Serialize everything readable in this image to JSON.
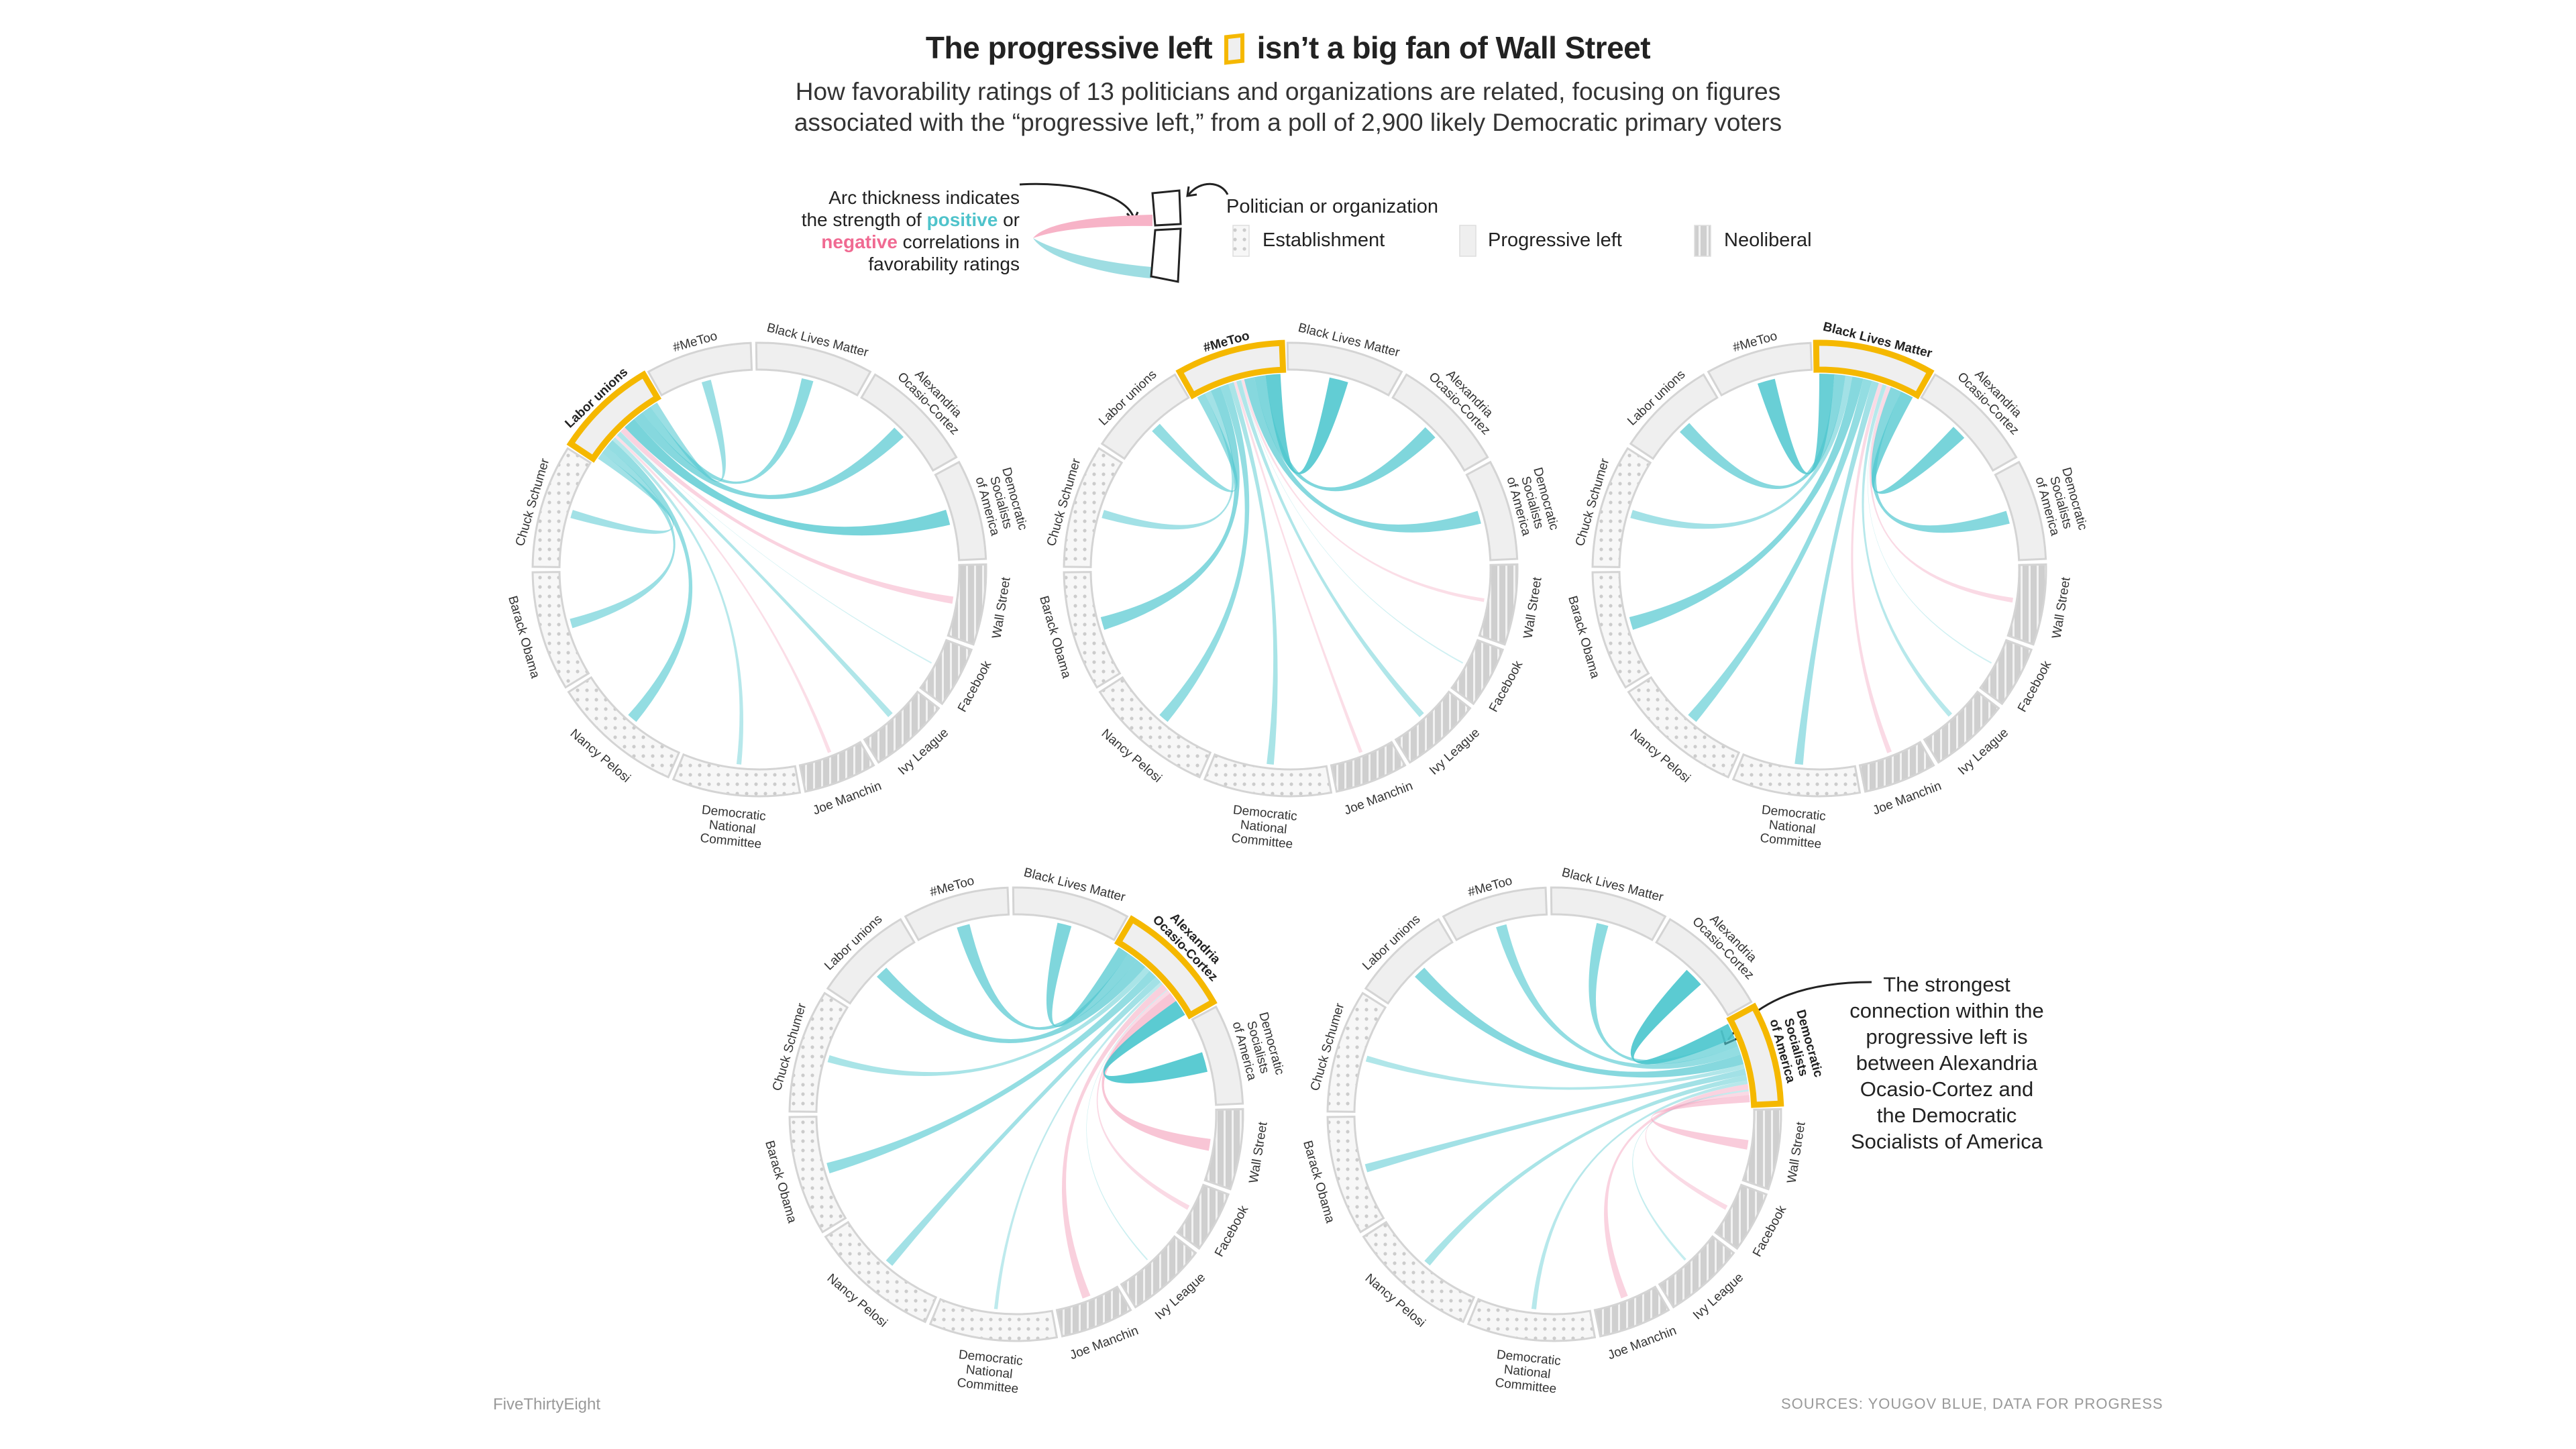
{
  "title": {
    "before": "The progressive left",
    "after": "isn’t a big fan of Wall Street"
  },
  "subtitle": {
    "line1": "How favorability ratings of 13 politicians and organizations are related, focusing on figures",
    "line2": "associated with the “progressive left,” from a poll of 2,900 likely Democratic primary voters"
  },
  "legend": {
    "arc_text_1": "Arc thickness indicates",
    "arc_text_2a": "the strength of ",
    "positive": "positive",
    "arc_text_2b": " or",
    "negative": "negative",
    "arc_text_3b": " correlations in",
    "arc_text_4": "favorability ratings",
    "politician_label": "Politician or organization",
    "categories": [
      {
        "name": "Establishment",
        "pattern": "dots"
      },
      {
        "name": "Progressive left",
        "pattern": "solid"
      },
      {
        "name": "Neoliberal",
        "pattern": "stripes"
      }
    ]
  },
  "colors": {
    "positive": "#4fc7cf",
    "negative": "#f4a6bf",
    "highlight": "#f5b800",
    "progressive_fill": "#efefef",
    "establishment_fill": "#f7f7f7",
    "neoliberal_fill": "#cfcfcf"
  },
  "annotation": "The strongest connection within the progressive left is between Alexandria Ocasio-Cortez and the Democratic Socialists of America",
  "footer": {
    "brand": "FiveThirtyEight",
    "sources": "SOURCES: YOUGOV BLUE, DATA FOR PROGRESS"
  },
  "chart_data": {
    "type": "chord",
    "title": "The progressive left isn’t a big fan of Wall Street",
    "nodes": [
      {
        "name": "Wall Street",
        "label": [
          "Wall Street"
        ],
        "group": "Neoliberal"
      },
      {
        "name": "Facebook",
        "label": [
          "Facebook"
        ],
        "group": "Neoliberal"
      },
      {
        "name": "Ivy League",
        "label": [
          "Ivy League"
        ],
        "group": "Neoliberal"
      },
      {
        "name": "Joe Manchin",
        "label": [
          "Joe Manchin"
        ],
        "group": "Neoliberal"
      },
      {
        "name": "Democratic National Committee",
        "label": [
          "Democratic",
          "National",
          "Committee"
        ],
        "group": "Establishment"
      },
      {
        "name": "Nancy Pelosi",
        "label": [
          "Nancy Pelosi"
        ],
        "group": "Establishment"
      },
      {
        "name": "Barack Obama",
        "label": [
          "Barack Obama"
        ],
        "group": "Establishment"
      },
      {
        "name": "Chuck Schumer",
        "label": [
          "Chuck Schumer"
        ],
        "group": "Establishment"
      },
      {
        "name": "Labor unions",
        "label": [
          "Labor unions"
        ],
        "group": "Progressive left"
      },
      {
        "name": "#MeToo",
        "label": [
          "#MeToo"
        ],
        "group": "Progressive left"
      },
      {
        "name": "Black Lives Matter",
        "label": [
          "Black Lives Matter"
        ],
        "group": "Progressive left"
      },
      {
        "name": "Alexandria Ocasio-Cortez",
        "label": [
          "Alexandria",
          "Ocasio-Cortez"
        ],
        "group": "Progressive left"
      },
      {
        "name": "Democratic Socialists of America",
        "label": [
          "Democratic",
          "Socialists",
          "of America"
        ],
        "group": "Progressive left"
      }
    ],
    "panels": [
      {
        "focus": "Labor unions",
        "correlations": {
          "Wall Street": -0.3,
          "Facebook": 0.02,
          "Ivy League": 0.25,
          "Joe Manchin": -0.15,
          "Democratic National Committee": 0.2,
          "Nancy Pelosi": 0.45,
          "Barack Obama": 0.4,
          "Chuck Schumer": 0.35,
          "#MeToo": 0.4,
          "Black Lives Matter": 0.5,
          "Alexandria Ocasio-Cortez": 0.55,
          "Democratic Socialists of America": 0.65
        }
      },
      {
        "focus": "#MeToo",
        "correlations": {
          "Wall Street": -0.15,
          "Facebook": 0.03,
          "Ivy League": 0.25,
          "Joe Manchin": -0.15,
          "Democratic National Committee": 0.3,
          "Nancy Pelosi": 0.45,
          "Barack Obama": 0.55,
          "Chuck Schumer": 0.35,
          "Labor unions": 0.45,
          "Black Lives Matter": 0.8,
          "Alexandria Ocasio-Cortez": 0.6,
          "Democratic Socialists of America": 0.55
        }
      },
      {
        "focus": "Black Lives Matter",
        "correlations": {
          "Wall Street": -0.2,
          "Facebook": 0.03,
          "Ivy League": 0.2,
          "Joe Manchin": -0.2,
          "Democratic National Committee": 0.35,
          "Nancy Pelosi": 0.45,
          "Barack Obama": 0.55,
          "Chuck Schumer": 0.35,
          "Labor unions": 0.55,
          "#MeToo": 0.75,
          "Alexandria Ocasio-Cortez": 0.65,
          "Democratic Socialists of America": 0.55
        }
      },
      {
        "focus": "Alexandria Ocasio-Cortez",
        "correlations": {
          "Wall Street": -0.5,
          "Facebook": -0.2,
          "Ivy League": 0.05,
          "Joe Manchin": -0.35,
          "Democratic National Committee": 0.15,
          "Nancy Pelosi": 0.35,
          "Barack Obama": 0.45,
          "Chuck Schumer": 0.3,
          "Labor unions": 0.55,
          "#MeToo": 0.55,
          "Black Lives Matter": 0.6,
          "Democratic Socialists of America": 0.85
        }
      },
      {
        "focus": "Democratic Socialists of America",
        "correlations": {
          "Wall Street": -0.4,
          "Facebook": -0.2,
          "Ivy League": 0.1,
          "Joe Manchin": -0.3,
          "Democratic National Committee": 0.2,
          "Nancy Pelosi": 0.3,
          "Barack Obama": 0.35,
          "Chuck Schumer": 0.25,
          "Labor unions": 0.55,
          "#MeToo": 0.45,
          "Black Lives Matter": 0.5,
          "Alexandria Ocasio-Cortez": 0.85
        }
      }
    ]
  }
}
